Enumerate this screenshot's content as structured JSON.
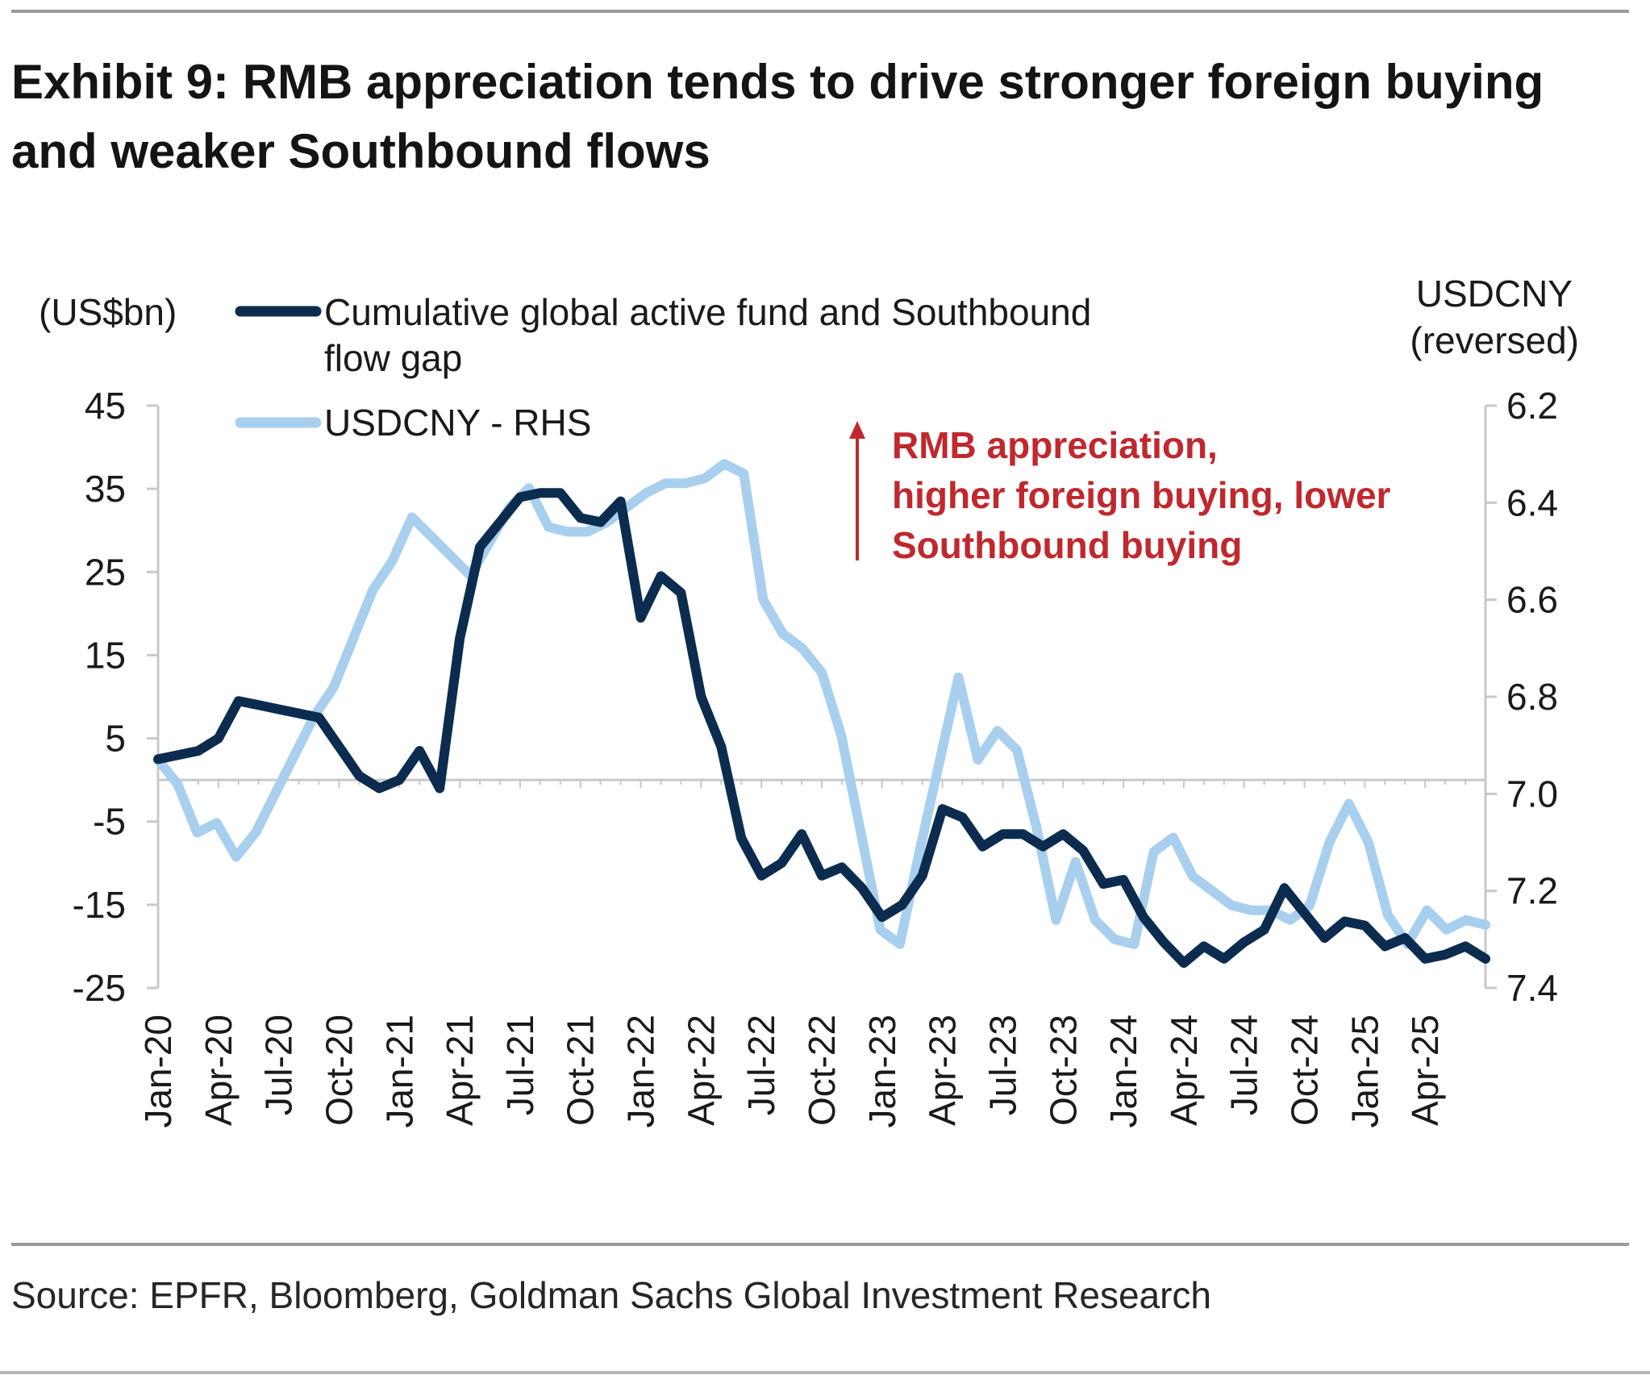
{
  "header": {
    "title_line1": "Exhibit 9: RMB appreciation tends to drive stronger foreign buying",
    "title_line2": "and weaker Southbound flows"
  },
  "footer": {
    "source": "Source: EPFR, Bloomberg, Goldman Sachs Global Investment Research"
  },
  "colors": {
    "flow_gap": "#0b2c4f",
    "usdcny": "#a9cfee",
    "annotation": "#c0282d",
    "axis": "#c8c8c8",
    "rule": "#9a9a9a"
  },
  "chart_data": {
    "type": "line",
    "title": "Exhibit 9: RMB appreciation tends to drive stronger foreign buying and weaker Southbound flows",
    "left_axis": {
      "label": "(US$bn)",
      "ylim": [
        -25,
        45
      ],
      "ticks": [
        "45",
        "35",
        "25",
        "15",
        "5",
        "-5",
        "-15",
        "-25"
      ]
    },
    "right_axis": {
      "label_line1": "USDCNY",
      "label_line2": "(reversed)",
      "ylim": [
        6.2,
        7.4
      ],
      "reversed": true,
      "ticks": [
        "6.2",
        "6.4",
        "6.6",
        "6.8",
        "7.0",
        "7.2",
        "7.4"
      ]
    },
    "x_tick_labels": [
      "Jan-20",
      "Apr-20",
      "Jul-20",
      "Oct-20",
      "Jan-21",
      "Apr-21",
      "Jul-21",
      "Oct-21",
      "Jan-22",
      "Apr-22",
      "Jul-22",
      "Oct-22",
      "Jan-23",
      "Apr-23",
      "Jul-23",
      "Oct-23",
      "Jan-24",
      "Apr-24",
      "Jul-24",
      "Oct-24",
      "Jan-25",
      "Apr-25"
    ],
    "x_start": "Jan-20",
    "x_end": "May-25",
    "grid": false,
    "legend": {
      "position": "top-left",
      "flow_gap_line1": "Cumulative global active fund and Southbound",
      "flow_gap_line2": "flow gap",
      "usdcny": "USDCNY - RHS"
    },
    "annotation": {
      "line1": "RMB appreciation,",
      "line2": "higher foreign buying, lower",
      "line3": "Southbound buying"
    },
    "series": [
      {
        "name": "Cumulative global active fund and Southbound flow gap",
        "axis": "left",
        "values": [
          2.5,
          3,
          3.5,
          5,
          9.5,
          9,
          8.5,
          8,
          7.5,
          4,
          0.5,
          -1,
          0,
          3.5,
          -1,
          17,
          28,
          31,
          34,
          34.5,
          34.5,
          31.5,
          31,
          33.5,
          19.5,
          24.5,
          22.5,
          10,
          4,
          -7,
          -11.5,
          -10,
          -6.5,
          -11.5,
          -10.5,
          -13,
          -16.5,
          -15,
          -11.5,
          -3.5,
          -4.5,
          -8,
          -6.5,
          -6.5,
          -8,
          -6.5,
          -8.5,
          -12.5,
          -12,
          -16.5,
          -19.5,
          -22,
          -20,
          -21.5,
          -19.5,
          -18,
          -13,
          -16,
          -19,
          -17,
          -17.5,
          -20,
          -19,
          -21.5,
          -21,
          -20,
          -21.5
        ]
      },
      {
        "name": "USDCNY - RHS",
        "axis": "right",
        "values": [
          6.93,
          6.98,
          7.08,
          7.06,
          7.13,
          7.08,
          7.0,
          6.92,
          6.84,
          6.78,
          6.68,
          6.58,
          6.52,
          6.43,
          6.47,
          6.51,
          6.55,
          6.48,
          6.41,
          6.37,
          6.45,
          6.46,
          6.46,
          6.44,
          6.41,
          6.38,
          6.36,
          6.36,
          6.35,
          6.32,
          6.34,
          6.6,
          6.67,
          6.7,
          6.75,
          6.88,
          7.08,
          7.28,
          7.31,
          7.12,
          6.94,
          6.76,
          6.93,
          6.87,
          6.91,
          7.07,
          7.26,
          7.14,
          7.26,
          7.3,
          7.31,
          7.12,
          7.09,
          7.17,
          7.2,
          7.23,
          7.24,
          7.24,
          7.26,
          7.23,
          7.1,
          7.02,
          7.1,
          7.25,
          7.31,
          7.24,
          7.28,
          7.26,
          7.27
        ]
      }
    ]
  }
}
